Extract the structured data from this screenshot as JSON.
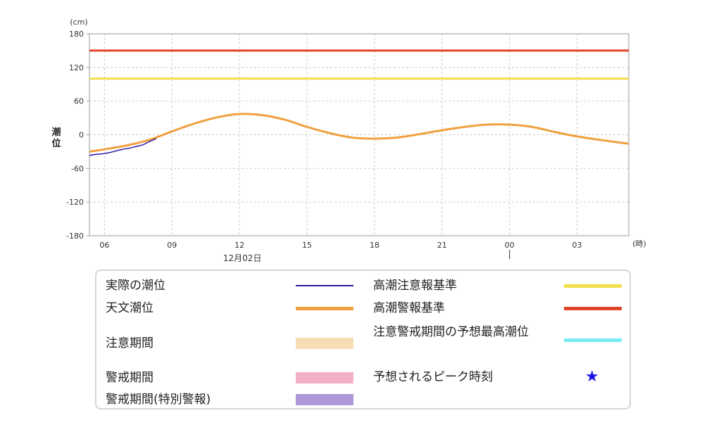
{
  "chart_data": {
    "type": "line",
    "y_unit": "(cm)",
    "x_unit": "(時)",
    "ylabel": "潮位",
    "ylim": [
      -180,
      180
    ],
    "yticks": [
      "180",
      "120",
      "60",
      "0",
      "-60",
      "-120",
      "-180"
    ],
    "ytick_values": [
      180,
      120,
      60,
      0,
      -60,
      -120,
      -180
    ],
    "x_range_hours": [
      5.33,
      29.3
    ],
    "xticks": [
      {
        "label": "06",
        "hour": 6
      },
      {
        "label": "09",
        "hour": 9
      },
      {
        "label": "12",
        "hour": 12
      },
      {
        "label": "15",
        "hour": 15
      },
      {
        "label": "18",
        "hour": 18
      },
      {
        "label": "21",
        "hour": 21
      },
      {
        "label": "00",
        "hour": 24
      },
      {
        "label": "03",
        "hour": 27
      }
    ],
    "date_label": "12月02日",
    "date_label_hour": 12,
    "day_marker_hour": 24,
    "grid": true,
    "thresholds": [
      {
        "name": "高潮注意報基準",
        "value": 100,
        "color": "#f0de4a"
      },
      {
        "name": "高潮警報基準",
        "value": 150,
        "color": "#e0452a"
      }
    ],
    "series": [
      {
        "name": "実際の潮位",
        "color": "#2a1aa0",
        "x": [
          5.33,
          5.6,
          5.9,
          6.2,
          6.5,
          6.8,
          7.1,
          7.4,
          7.7,
          8.0,
          8.3
        ],
        "y": [
          -37,
          -35,
          -34,
          -32,
          -29,
          -26,
          -24,
          -21,
          -18,
          -12,
          -7
        ]
      },
      {
        "name": "天文潮位",
        "color": "#f0a040",
        "x": [
          5.33,
          6,
          7,
          8,
          9,
          10,
          11,
          12,
          13,
          14,
          15,
          16,
          17,
          18,
          19,
          20,
          21,
          22,
          23,
          24,
          25,
          26,
          27,
          28,
          29.3
        ],
        "y": [
          -30,
          -26,
          -19,
          -9,
          6,
          20,
          31,
          37,
          35,
          27,
          14,
          3,
          -5,
          -7,
          -5,
          1,
          8,
          14,
          18,
          18,
          14,
          5,
          -3,
          -9,
          -16
        ]
      }
    ]
  },
  "legend": {
    "items": [
      {
        "label": "実際の潮位",
        "kind": "line",
        "color": "#2a1aa0"
      },
      {
        "label": "天文潮位",
        "kind": "line",
        "color": "#f0a040"
      },
      {
        "label": "注意期間",
        "kind": "box",
        "color": "#f8dcb4"
      },
      {
        "label": "警戒期間",
        "kind": "box",
        "color": "#f4b0c8"
      },
      {
        "label": "警戒期間(特別警報)",
        "kind": "box",
        "color": "#b098d8"
      },
      {
        "label": "高潮注意報基準",
        "kind": "line",
        "color": "#f0de4a"
      },
      {
        "label": "高潮警報基準",
        "kind": "line",
        "color": "#e0452a"
      },
      {
        "label": "注意警戒期間の予想最高潮位",
        "kind": "line",
        "color": "#78eaf4"
      },
      {
        "label": "予想されるピーク時刻",
        "kind": "star",
        "color": "#1414e6",
        "symbol": "★"
      }
    ]
  }
}
